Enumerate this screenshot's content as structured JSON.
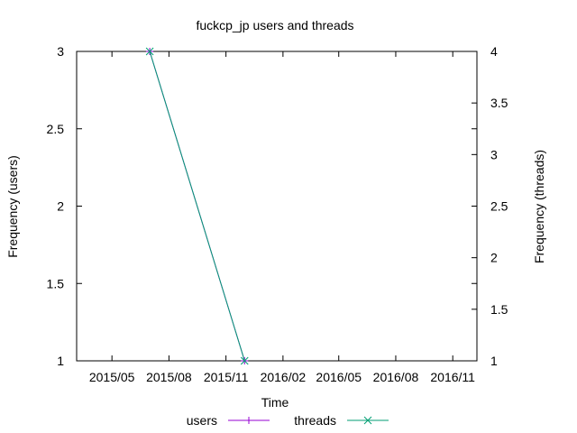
{
  "chart_data": {
    "type": "line",
    "title": "fuckcp_jp users and threads",
    "xlabel": "Time",
    "ylabel": "Frequency (users)",
    "y2label": "Frequency (threads)",
    "x_ticks": [
      "2015/05",
      "2015/08",
      "2015/11",
      "2016/02",
      "2016/05",
      "2016/08",
      "2016/11"
    ],
    "xlim": [
      "2015/03/05",
      "2016/12/10"
    ],
    "ylim": [
      1,
      3
    ],
    "y_ticks": [
      "1",
      "1.5",
      "2",
      "2.5",
      "3"
    ],
    "y2lim": [
      1,
      4
    ],
    "y2_ticks": [
      "1",
      "1.5",
      "2",
      "2.5",
      "3",
      "3.5",
      "4"
    ],
    "grid": false,
    "legend_position": "bottom-center",
    "series": [
      {
        "name": "users",
        "axis": "left",
        "color": "#9400d3",
        "marker": "plus",
        "points": [
          {
            "x": "2015/07/01",
            "y": 3
          },
          {
            "x": "2015/12/01",
            "y": 1
          }
        ]
      },
      {
        "name": "threads",
        "axis": "right",
        "color": "#009e73",
        "marker": "cross",
        "points": [
          {
            "x": "2015/07/01",
            "y": 4
          },
          {
            "x": "2015/12/01",
            "y": 1
          }
        ]
      }
    ]
  }
}
